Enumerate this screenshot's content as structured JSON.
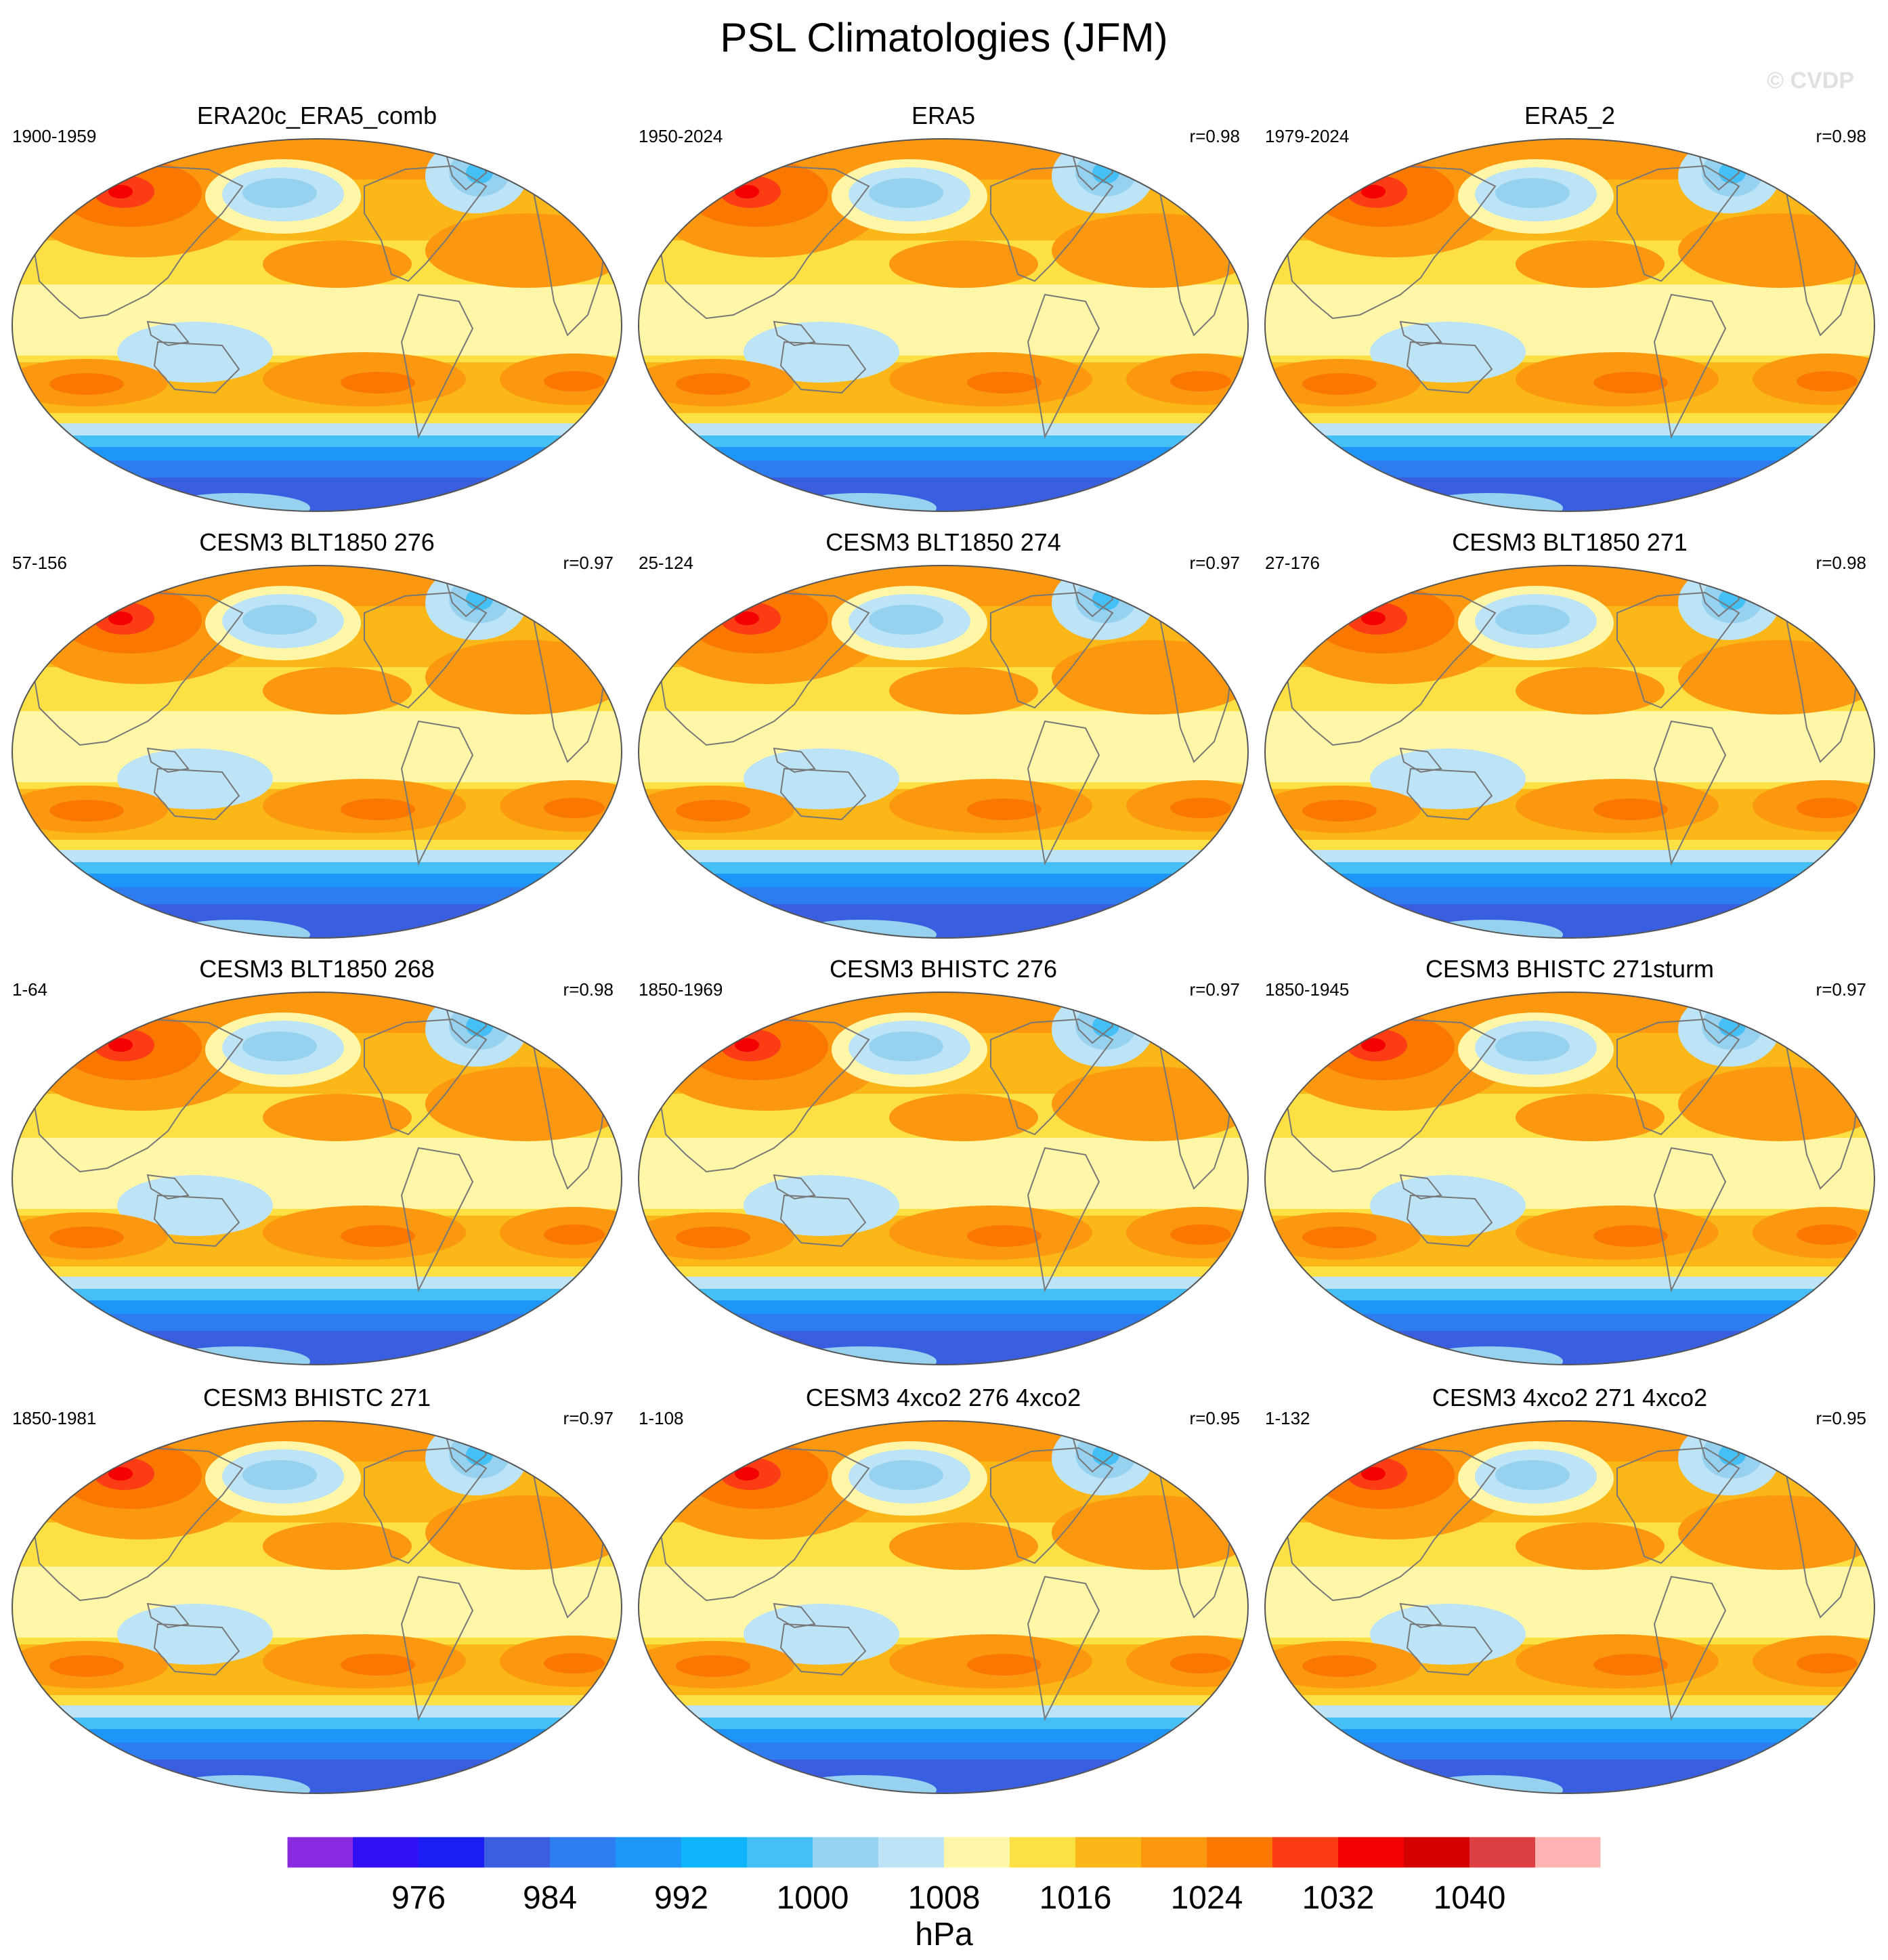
{
  "figure": {
    "title": "PSL Climatologies (JFM)",
    "watermark": "© CVDP",
    "colorbar_unit": "hPa"
  },
  "colorbar": {
    "tick_labels": [
      "976",
      "984",
      "992",
      "1000",
      "1008",
      "1016",
      "1024",
      "1032",
      "1040"
    ],
    "colors": [
      "#8a2be2",
      "#3210f5",
      "#1a1ef2",
      "#3a5ee0",
      "#2e7df0",
      "#1e96f8",
      "#10b4fa",
      "#44c0f6",
      "#96d2f0",
      "#bce4f6",
      "#fff6a8",
      "#fde044",
      "#fbb618",
      "#fb9810",
      "#fb7800",
      "#fb3c14",
      "#f40000",
      "#d40000",
      "#dc4044",
      "#ffb4b4"
    ]
  },
  "panels": [
    {
      "name": "ERA20c_ERA5_comb",
      "years": "1900-1959",
      "r": ""
    },
    {
      "name": "ERA5",
      "years": "1950-2024",
      "r": "r=0.98"
    },
    {
      "name": "ERA5_2",
      "years": "1979-2024",
      "r": "r=0.98"
    },
    {
      "name": "CESM3 BLT1850 276",
      "years": "57-156",
      "r": "r=0.97"
    },
    {
      "name": "CESM3 BLT1850 274",
      "years": "25-124",
      "r": "r=0.97"
    },
    {
      "name": "CESM3 BLT1850 271",
      "years": "27-176",
      "r": "r=0.98"
    },
    {
      "name": "CESM3 BLT1850 268",
      "years": "1-64",
      "r": "r=0.98"
    },
    {
      "name": "CESM3 BHISTC 276",
      "years": "1850-1969",
      "r": "r=0.97"
    },
    {
      "name": "CESM3 BHISTC 271sturm",
      "years": "1850-1945",
      "r": "r=0.97"
    },
    {
      "name": "CESM3 BHISTC 271",
      "years": "1850-1981",
      "r": "r=0.97"
    },
    {
      "name": "CESM3 4xco2 276 4xco2",
      "years": "1-108",
      "r": "r=0.95"
    },
    {
      "name": "CESM3 4xco2 271 4xco2",
      "years": "1-132",
      "r": "r=0.95"
    }
  ],
  "chart_data": {
    "type": "heatmap",
    "title": "PSL Climatologies (JFM)",
    "variable": "PSL",
    "season": "JFM",
    "units": "hPa",
    "contour_levels": [
      976,
      980,
      984,
      988,
      992,
      996,
      1000,
      1004,
      1008,
      1012,
      1016,
      1020,
      1024,
      1028,
      1032,
      1036,
      1040,
      1044
    ],
    "colorbar_ticks": [
      976,
      984,
      992,
      1000,
      1008,
      1016,
      1024,
      1032,
      1040
    ],
    "panels": [
      {
        "name": "ERA20c_ERA5_comb",
        "years": "1900-1959",
        "pattern_correlation": null
      },
      {
        "name": "ERA5",
        "years": "1950-2024",
        "pattern_correlation": 0.98
      },
      {
        "name": "ERA5_2",
        "years": "1979-2024",
        "pattern_correlation": 0.98
      },
      {
        "name": "CESM3 BLT1850 276",
        "years": "57-156",
        "pattern_correlation": 0.97
      },
      {
        "name": "CESM3 BLT1850 274",
        "years": "25-124",
        "pattern_correlation": 0.97
      },
      {
        "name": "CESM3 BLT1850 271",
        "years": "27-176",
        "pattern_correlation": 0.98
      },
      {
        "name": "CESM3 BLT1850 268",
        "years": "1-64",
        "pattern_correlation": 0.98
      },
      {
        "name": "CESM3 BHISTC 276",
        "years": "1850-1969",
        "pattern_correlation": 0.97
      },
      {
        "name": "CESM3 BHISTC 271sturm",
        "years": "1850-1945",
        "pattern_correlation": 0.97
      },
      {
        "name": "CESM3 BHISTC 271",
        "years": "1850-1981",
        "pattern_correlation": 0.97
      },
      {
        "name": "CESM3 4xco2 276 4xco2",
        "years": "1-108",
        "pattern_correlation": 0.95
      },
      {
        "name": "CESM3 4xco2 271 4xco2",
        "years": "1-132",
        "pattern_correlation": 0.95
      }
    ]
  }
}
